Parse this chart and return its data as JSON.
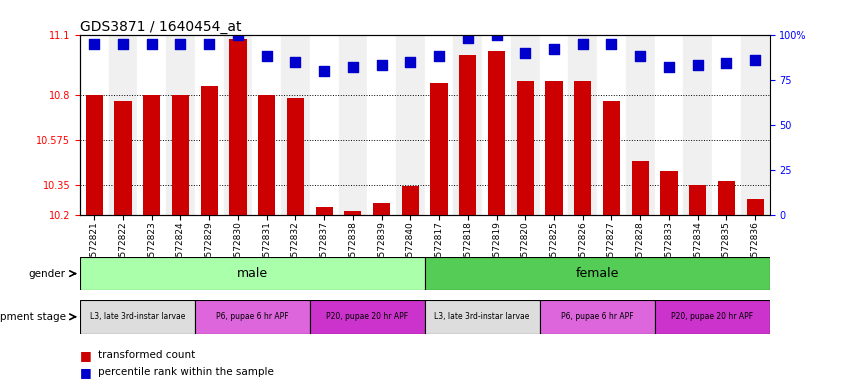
{
  "title": "GDS3871 / 1640454_at",
  "samples": [
    "GSM572821",
    "GSM572822",
    "GSM572823",
    "GSM572824",
    "GSM572829",
    "GSM572830",
    "GSM572831",
    "GSM572832",
    "GSM572837",
    "GSM572838",
    "GSM572839",
    "GSM572840",
    "GSM572817",
    "GSM572818",
    "GSM572819",
    "GSM572820",
    "GSM572825",
    "GSM572826",
    "GSM572827",
    "GSM572828",
    "GSM572833",
    "GSM572834",
    "GSM572835",
    "GSM572836"
  ],
  "transformed_count": [
    10.8,
    10.77,
    10.8,
    10.8,
    10.845,
    11.08,
    10.8,
    10.785,
    10.24,
    10.22,
    10.26,
    10.345,
    10.86,
    11.0,
    11.02,
    10.87,
    10.87,
    10.87,
    10.77,
    10.47,
    10.42,
    10.35,
    10.37,
    10.28
  ],
  "percentile_rank": [
    95,
    95,
    95,
    95,
    95,
    100,
    88,
    85,
    80,
    82,
    83,
    85,
    88,
    98,
    100,
    90,
    92,
    95,
    95,
    88,
    82,
    83,
    84,
    86
  ],
  "ylim_min": 10.2,
  "ylim_max": 11.1,
  "yticks": [
    10.2,
    10.35,
    10.575,
    10.8,
    11.1
  ],
  "ytick_labels": [
    "10.2",
    "10.35",
    "10.575",
    "10.8",
    "11.1"
  ],
  "right_yticks": [
    0,
    25,
    50,
    75,
    100
  ],
  "right_ytick_labels": [
    "0",
    "25",
    "50",
    "75",
    "100%"
  ],
  "bar_color": "#cc0000",
  "dot_color": "#0000cc",
  "gender_male_color": "#aaffaa",
  "gender_female_color": "#55cc55",
  "dev_l3_color": "#dddddd",
  "dev_p6_color": "#dd66dd",
  "dev_p20_color": "#cc33cc",
  "gender_row_label": "gender",
  "dev_row_label": "development stage",
  "legend_bar": "transformed count",
  "legend_dot": "percentile rank within the sample",
  "n_male": 12,
  "n_female": 12,
  "n_l3": 4,
  "n_p6": 4,
  "n_p20": 4,
  "bar_width": 0.6,
  "dot_size": 45,
  "tick_fontsize": 7,
  "title_fontsize": 10,
  "grid_yticks": [
    10.35,
    10.575,
    10.8
  ]
}
